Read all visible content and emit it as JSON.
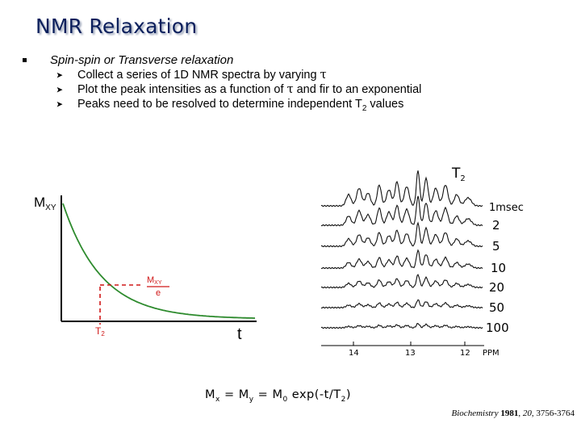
{
  "slide": {
    "title": "NMR Relaxation",
    "bullet": {
      "text": "Spin-spin or Transverse relaxation",
      "subitems": [
        {
          "before": "Collect a series of 1D NMR spectra by varying ",
          "symbol": "τ",
          "after": ""
        },
        {
          "before": "Plot the peak intensities as a function of ",
          "symbol": "τ",
          "after": " and fir to an exponential"
        },
        {
          "before": "Peaks need to be resolved to determine independent T",
          "sub": "2",
          "after": " values"
        }
      ]
    }
  },
  "decay_plot": {
    "y_axis_label": "M",
    "y_axis_label_sub": "XY",
    "x_axis_label": "t",
    "marker_fraction_num": "M",
    "marker_fraction_num_sub": "XY",
    "marker_fraction_den": "e",
    "marker_x_label": "T",
    "marker_x_label_sub": "2",
    "colors": {
      "curve": "#2e8b2e",
      "marker": "#d01818",
      "axes": "#000000"
    }
  },
  "spectra": {
    "header": "T",
    "header_sub": "2",
    "delays": [
      "1msec",
      "2",
      "5",
      "10",
      "20",
      "50",
      "100"
    ],
    "ppm_ticks": [
      "14",
      "13",
      "12"
    ],
    "ppm_unit": "PPM"
  },
  "equation": {
    "mx": "M",
    "mx_sub": "x",
    "my": "M",
    "my_sub": "y",
    "m0": "M",
    "m0_sub": "0",
    "rhs": "exp(-t/T",
    "rhs_sub": "2",
    "close": ")"
  },
  "citation": {
    "journal": "Biochemistry",
    "year": "1981",
    "volume": "20",
    "pages": "3756-3764"
  }
}
